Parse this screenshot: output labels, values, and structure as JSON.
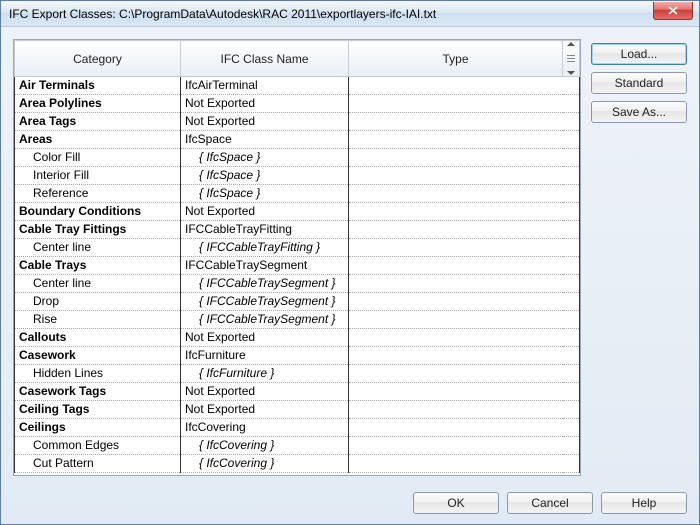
{
  "window": {
    "title": "IFC Export Classes: C:\\ProgramData\\Autodesk\\RAC 2011\\exportlayers-ifc-IAI.txt"
  },
  "columns": {
    "category": "Category",
    "ifc_class": "IFC Class Name",
    "type": "Type"
  },
  "buttons": {
    "load": "Load...",
    "standard": "Standard",
    "save_as": "Save As...",
    "ok": "OK",
    "cancel": "Cancel",
    "help": "Help"
  },
  "rows": [
    {
      "cat": "Air Terminals",
      "cls": "IfcAirTerminal",
      "bold": true,
      "indent": false,
      "italic": false
    },
    {
      "cat": "Area Polylines",
      "cls": "Not Exported",
      "bold": true,
      "indent": false,
      "italic": false
    },
    {
      "cat": "Area Tags",
      "cls": "Not Exported",
      "bold": true,
      "indent": false,
      "italic": false
    },
    {
      "cat": "Areas",
      "cls": "IfcSpace",
      "bold": true,
      "indent": false,
      "italic": false
    },
    {
      "cat": "Color Fill",
      "cls": "{ IfcSpace }",
      "bold": false,
      "indent": true,
      "italic": true
    },
    {
      "cat": "Interior Fill",
      "cls": "{ IfcSpace }",
      "bold": false,
      "indent": true,
      "italic": true
    },
    {
      "cat": "Reference",
      "cls": "{ IfcSpace }",
      "bold": false,
      "indent": true,
      "italic": true
    },
    {
      "cat": "Boundary Conditions",
      "cls": "Not Exported",
      "bold": true,
      "indent": false,
      "italic": false
    },
    {
      "cat": "Cable Tray Fittings",
      "cls": "IFCCableTrayFitting",
      "bold": true,
      "indent": false,
      "italic": false
    },
    {
      "cat": "Center line",
      "cls": "{ IFCCableTrayFitting }",
      "bold": false,
      "indent": true,
      "italic": true
    },
    {
      "cat": "Cable Trays",
      "cls": "IFCCableTraySegment",
      "bold": true,
      "indent": false,
      "italic": false
    },
    {
      "cat": "Center line",
      "cls": "{ IFCCableTraySegment }",
      "bold": false,
      "indent": true,
      "italic": true
    },
    {
      "cat": "Drop",
      "cls": "{ IFCCableTraySegment }",
      "bold": false,
      "indent": true,
      "italic": true
    },
    {
      "cat": "Rise",
      "cls": "{ IFCCableTraySegment }",
      "bold": false,
      "indent": true,
      "italic": true
    },
    {
      "cat": "Callouts",
      "cls": "Not Exported",
      "bold": true,
      "indent": false,
      "italic": false
    },
    {
      "cat": "Casework",
      "cls": "IfcFurniture",
      "bold": true,
      "indent": false,
      "italic": false
    },
    {
      "cat": "Hidden Lines",
      "cls": "{ IfcFurniture }",
      "bold": false,
      "indent": true,
      "italic": true
    },
    {
      "cat": "Casework Tags",
      "cls": "Not Exported",
      "bold": true,
      "indent": false,
      "italic": false
    },
    {
      "cat": "Ceiling Tags",
      "cls": "Not Exported",
      "bold": true,
      "indent": false,
      "italic": false
    },
    {
      "cat": "Ceilings",
      "cls": "IfcCovering",
      "bold": true,
      "indent": false,
      "italic": false
    },
    {
      "cat": "Common Edges",
      "cls": "{ IfcCovering }",
      "bold": false,
      "indent": true,
      "italic": true
    },
    {
      "cat": "Cut Pattern",
      "cls": "{ IfcCovering }",
      "bold": false,
      "indent": true,
      "italic": true
    }
  ]
}
